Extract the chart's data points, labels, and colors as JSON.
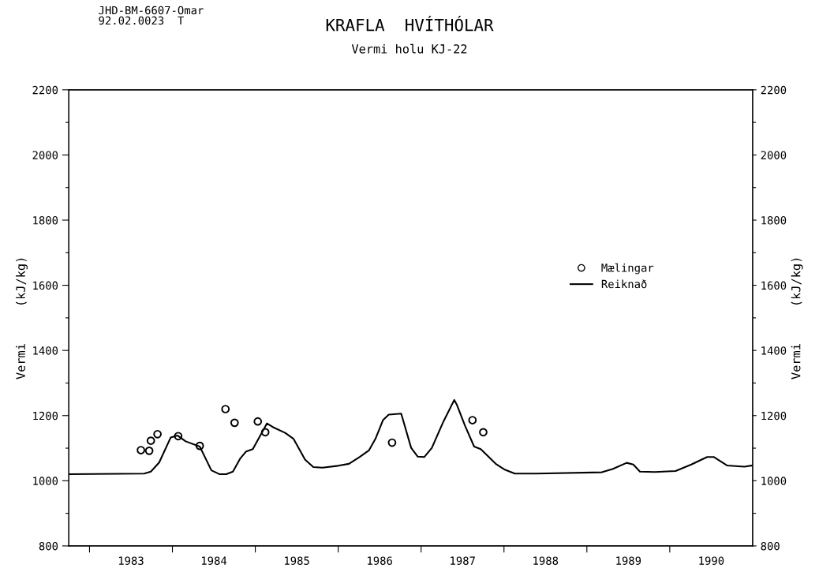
{
  "chart_data": {
    "type": "line",
    "title": "KRAFLA  HVÍTHÓLAR",
    "subtitle": "Vermi holu KJ-22",
    "ylabel": "Vermi     (kJ/kg)",
    "y2label": "Vermi     (kJ/kg)",
    "annotations": [
      "JHD-BM-6607-Omar\n92.02.0023  T"
    ],
    "xlim": [
      1982.75,
      1991.0
    ],
    "xticks": [
      {
        "value": 1983,
        "label": null
      },
      {
        "value": 1983.5,
        "label": "1983"
      },
      {
        "value": 1984,
        "label": null
      },
      {
        "value": 1984.5,
        "label": "1984"
      },
      {
        "value": 1985,
        "label": null
      },
      {
        "value": 1985.5,
        "label": "1985"
      },
      {
        "value": 1986,
        "label": null
      },
      {
        "value": 1986.5,
        "label": "1986"
      },
      {
        "value": 1987,
        "label": null
      },
      {
        "value": 1987.5,
        "label": "1987"
      },
      {
        "value": 1988,
        "label": null
      },
      {
        "value": 1988.5,
        "label": "1988"
      },
      {
        "value": 1989,
        "label": null
      },
      {
        "value": 1989.5,
        "label": "1989"
      },
      {
        "value": 1990,
        "label": null
      },
      {
        "value": 1990.5,
        "label": "1990"
      }
    ],
    "ylim": [
      800,
      2200
    ],
    "yticks": [
      800,
      {
        "value": 900,
        "label": null
      },
      1000,
      {
        "value": 1100,
        "label": null
      },
      1200,
      {
        "value": 1300,
        "label": null
      },
      1400,
      {
        "value": 1500,
        "label": null
      },
      1600,
      {
        "value": 1700,
        "label": null
      },
      1800,
      {
        "value": 1900,
        "label": null
      },
      2000,
      {
        "value": 2100,
        "label": null
      },
      2200
    ],
    "y2lim": [
      800,
      2200
    ],
    "y2ticks": [
      800,
      {
        "value": 900,
        "label": null
      },
      1000,
      {
        "value": 1100,
        "label": null
      },
      1200,
      {
        "value": 1300,
        "label": null
      },
      1400,
      {
        "value": 1500,
        "label": null
      },
      1600,
      {
        "value": 1700,
        "label": null
      },
      1800,
      {
        "value": 1900,
        "label": null
      },
      2000,
      {
        "value": 2100,
        "label": null
      },
      2200
    ],
    "grid": false,
    "legend": "right",
    "series": [
      {
        "name": "Mælingar",
        "type": "scatter",
        "marker": "circle",
        "color": "#000000",
        "x": [
          1983.62,
          1983.72,
          1983.74,
          1983.82,
          1984.07,
          1984.33,
          1984.64,
          1984.75,
          1985.03,
          1985.12,
          1986.65,
          1987.62,
          1987.75
        ],
        "values": [
          1094,
          1092,
          1123,
          1143,
          1137,
          1107,
          1220,
          1178,
          1182,
          1149,
          1117,
          1186,
          1149
        ]
      },
      {
        "name": "Reiknað",
        "color": "#000000",
        "x": [
          1982.75,
          1983.66,
          1983.74,
          1983.84,
          1983.98,
          1984.06,
          1984.16,
          1984.33,
          1984.47,
          1984.57,
          1984.65,
          1984.73,
          1984.82,
          1984.89,
          1984.97,
          1985.14,
          1985.21,
          1985.36,
          1985.46,
          1985.6,
          1985.7,
          1985.81,
          1986.0,
          1986.13,
          1986.26,
          1986.37,
          1986.45,
          1986.54,
          1986.61,
          1986.76,
          1986.88,
          1986.96,
          1987.04,
          1987.13,
          1987.27,
          1987.4,
          1987.43,
          1987.53,
          1987.64,
          1987.72,
          1987.9,
          1988.01,
          1988.13,
          1988.39,
          1989.18,
          1989.31,
          1989.48,
          1989.56,
          1989.64,
          1989.82,
          1990.07,
          1990.26,
          1990.45,
          1990.53,
          1990.69,
          1990.9,
          1991.0
        ],
        "values": [
          1020,
          1022,
          1028,
          1056,
          1133,
          1139,
          1121,
          1105,
          1032,
          1020,
          1020,
          1028,
          1069,
          1090,
          1097,
          1176,
          1165,
          1147,
          1129,
          1065,
          1042,
          1040,
          1046,
          1052,
          1073,
          1093,
          1129,
          1186,
          1203,
          1206,
          1101,
          1074,
          1073,
          1101,
          1182,
          1248,
          1234,
          1169,
          1105,
          1097,
          1052,
          1034,
          1022,
          1022,
          1026,
          1036,
          1055,
          1050,
          1028,
          1027,
          1030,
          1050,
          1073,
          1073,
          1047,
          1043,
          1047
        ]
      }
    ]
  }
}
